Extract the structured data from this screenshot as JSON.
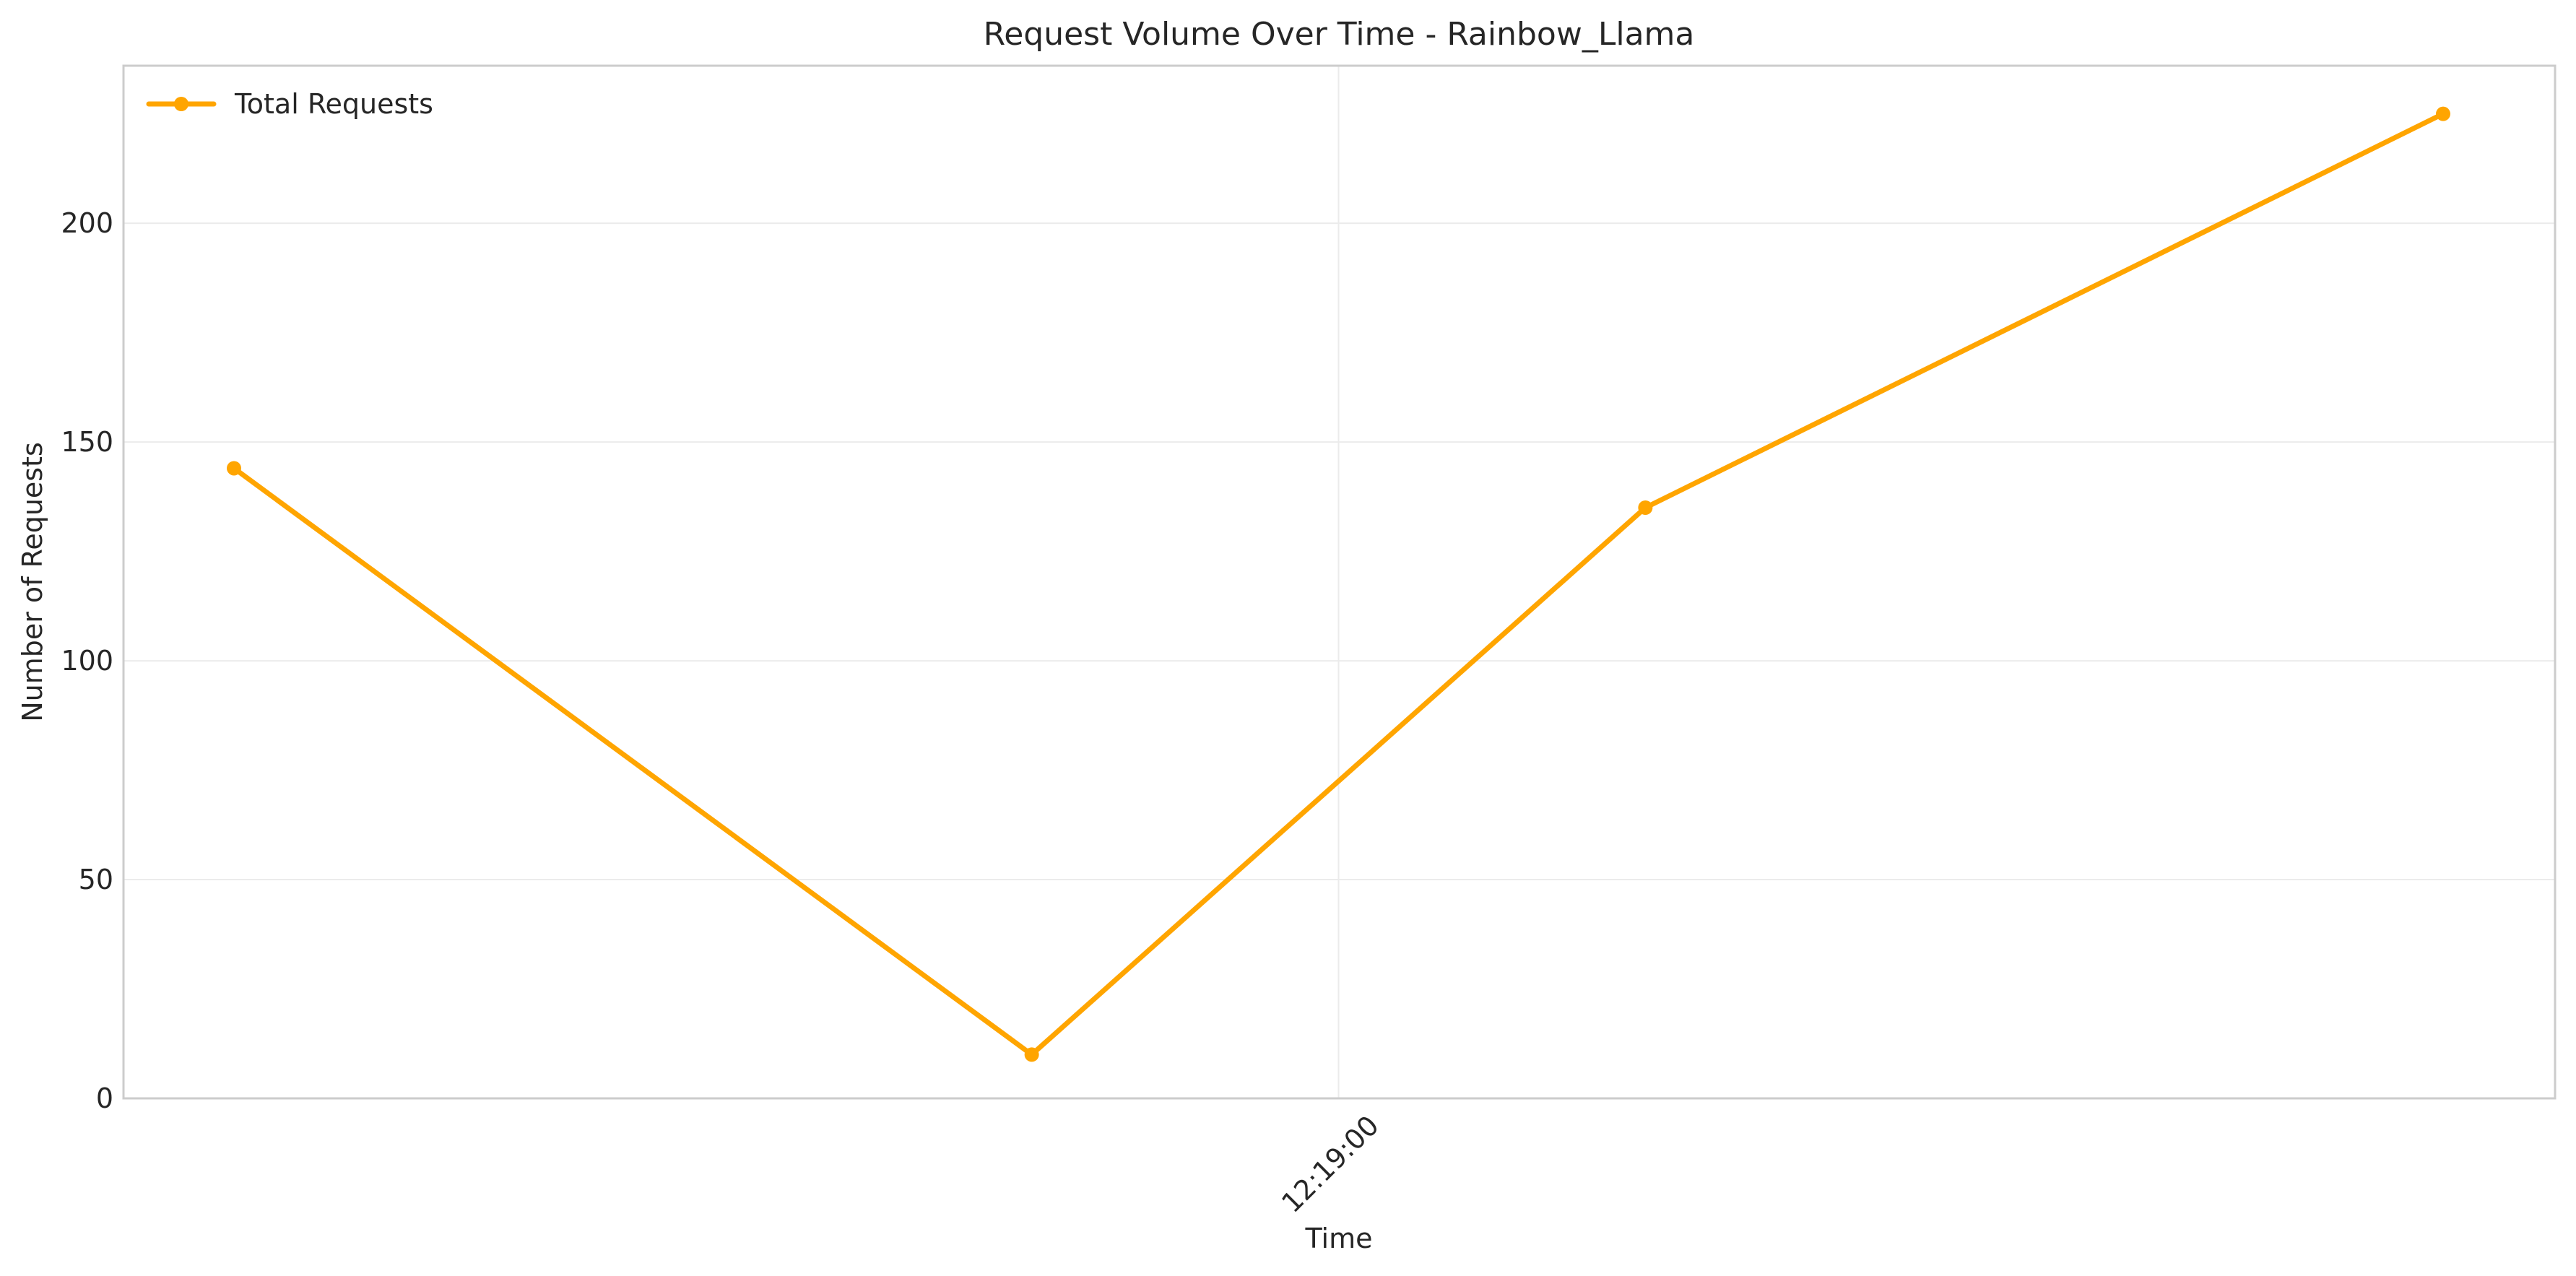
{
  "chart_data": {
    "type": "line",
    "title": "Request Volume Over Time - Rainbow_Llama",
    "xlabel": "Time",
    "ylabel": "Number of Requests",
    "x": [
      "12:18:42",
      "12:18:55",
      "12:19:05",
      "12:19:18"
    ],
    "x_ticks": [
      "12:19:00"
    ],
    "y_ticks": [
      0,
      50,
      100,
      150,
      200
    ],
    "ylim": [
      0,
      236
    ],
    "grid": true,
    "legend_position": "top-left",
    "series": [
      {
        "name": "Total Requests",
        "color": "#FFA500",
        "values": [
          144,
          10,
          135,
          225
        ]
      }
    ]
  }
}
